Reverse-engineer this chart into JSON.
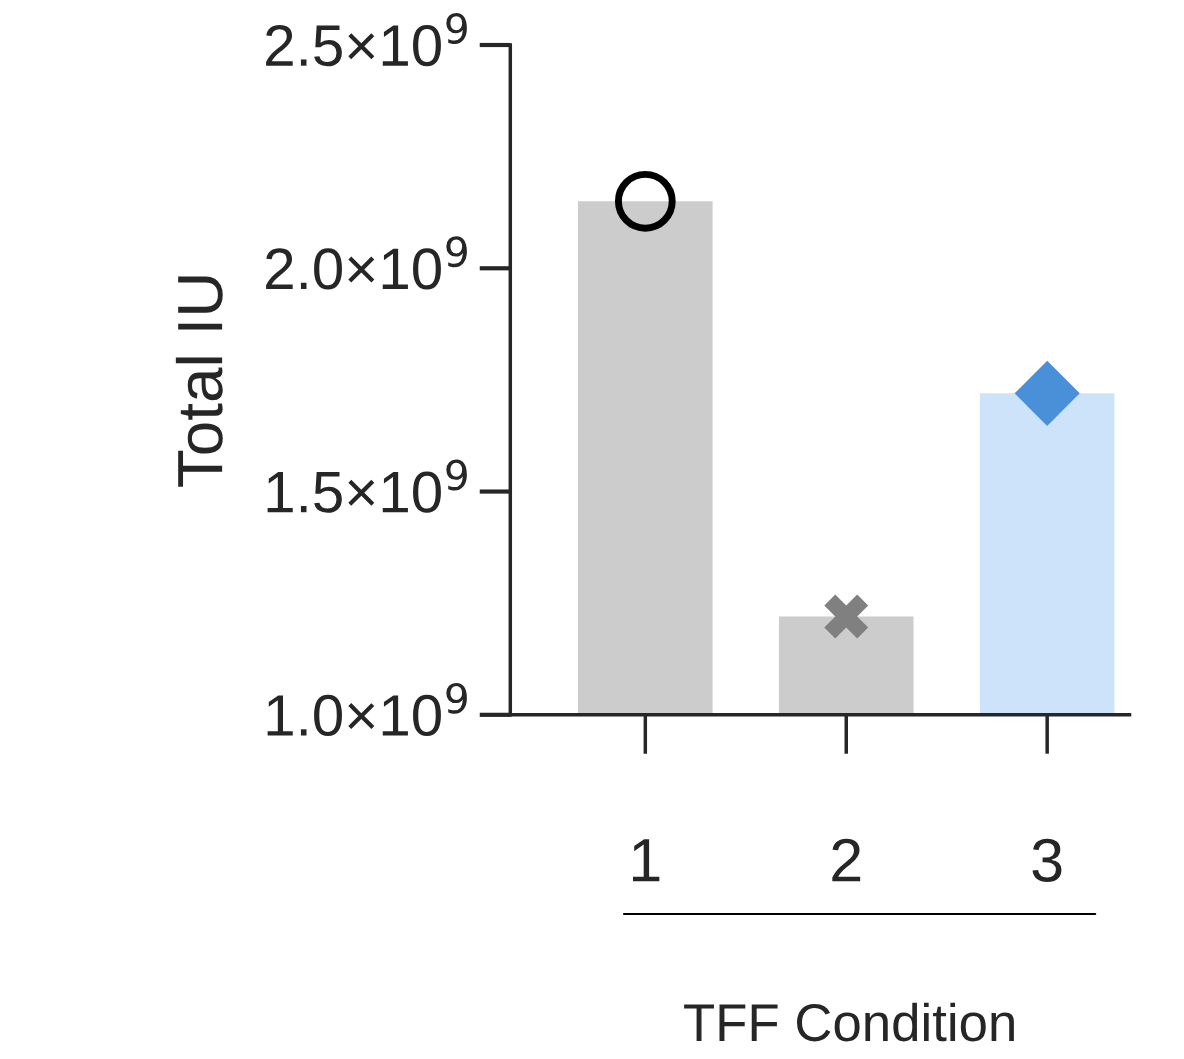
{
  "chart_data": {
    "type": "bar",
    "xlabel": "TFF Condition",
    "ylabel": "Total IU",
    "categories": [
      "1",
      "2",
      "3"
    ],
    "series": [
      {
        "values": [
          2150000000,
          1220000000,
          1720000000
        ],
        "colors": [
          "#cccccc",
          "#cccccc",
          "#cce3f9"
        ]
      },
      {
        "type": "scatter",
        "x": [
          "1"
        ],
        "values": [
          2150000000
        ],
        "color": "#000000",
        "marker": "circle"
      },
      {
        "type": "scatter",
        "x": [
          "2"
        ],
        "values": [
          1220000000
        ],
        "color": "#808080",
        "marker": "cross"
      },
      {
        "type": "scatter",
        "x": [
          "3"
        ],
        "values": [
          1720000000
        ],
        "color": "#4a90d9",
        "marker": "diamond"
      }
    ],
    "ylim": [
      1000000000,
      2500000000
    ],
    "yticks": [
      {
        "value": 1000000000,
        "label": "1.0×10$^{9}$"
      },
      {
        "value": 1500000000,
        "label": "1.5×10$^{9}$"
      },
      {
        "value": 2000000000,
        "label": "2.0×10$^{9}$"
      },
      {
        "value": 2500000000,
        "label": "2.5×10$^{9}$"
      }
    ],
    "grid": false
  }
}
